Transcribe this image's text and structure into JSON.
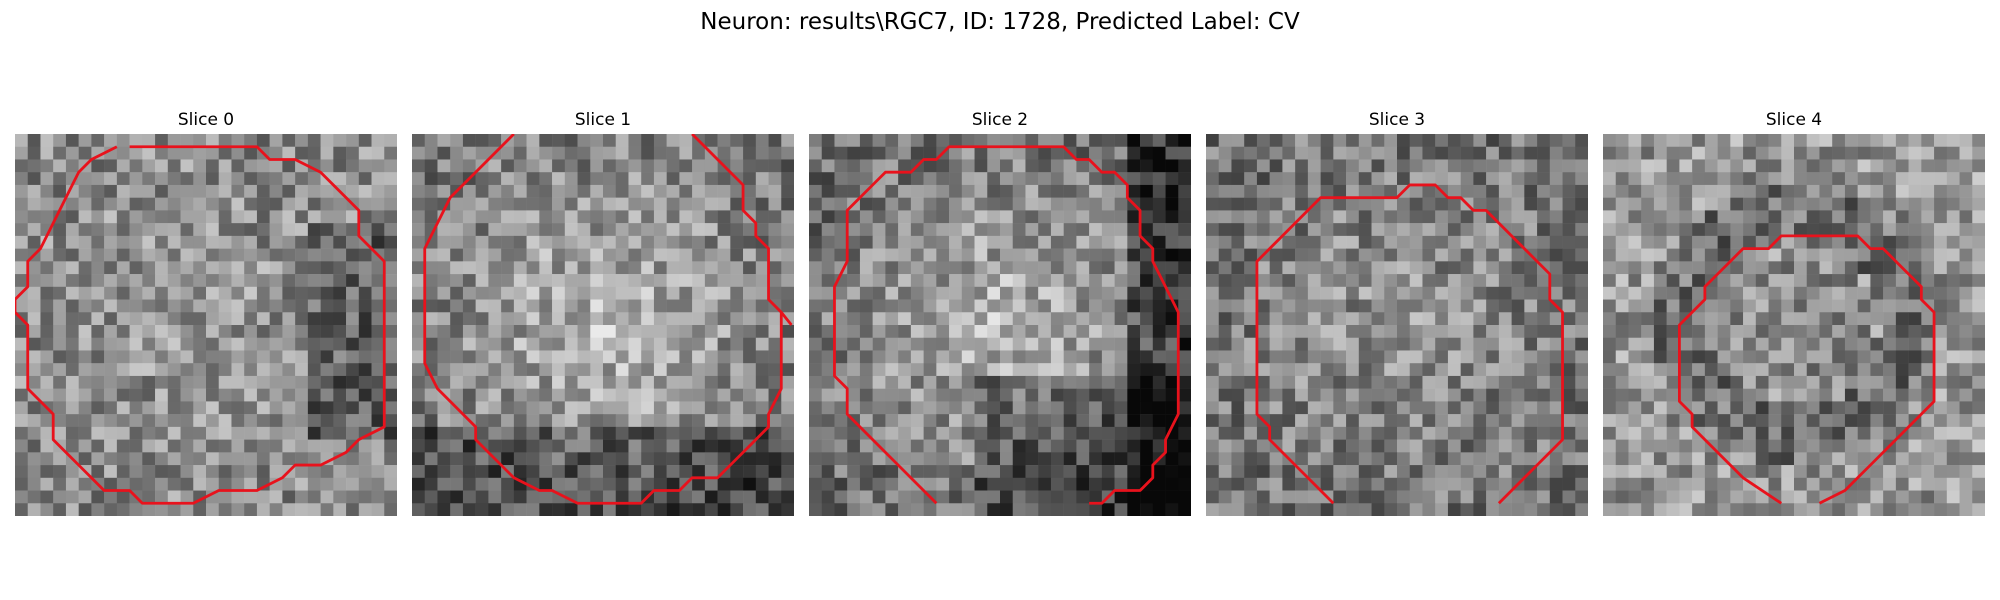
{
  "figure": {
    "title": "Neuron: results\\RGC7, ID: 1728, Predicted Label: CV"
  },
  "panels": [
    {
      "title": "Slice 0",
      "contour_color": "#e8121c"
    },
    {
      "title": "Slice 1",
      "contour_color": "#e8121c"
    },
    {
      "title": "Slice 2",
      "contour_color": "#e8121c"
    },
    {
      "title": "Slice 3",
      "contour_color": "#e8121c"
    },
    {
      "title": "Slice 4",
      "contour_color": "#e8121c"
    }
  ]
}
